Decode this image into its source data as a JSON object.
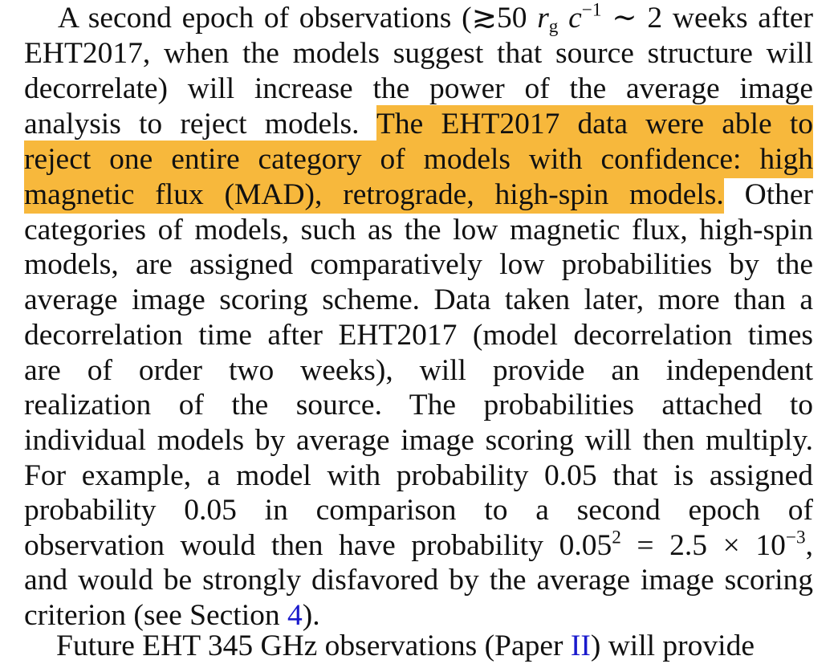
{
  "paragraph": {
    "l1a": "A second epoch of observations (",
    "l1sym": "≳",
    "l1num": "50 ",
    "l1r": "r",
    "l1sub": "g",
    "l1c": "c",
    "l1sup": "−1",
    "l1b": " ∼ 2 weeks after",
    "l2": "EHT2017, when the models suggest that source structure will",
    "l3": "decorrelate) will increase the power of the average image",
    "l4a": "analysis to reject models. ",
    "l4hl": "The EHT2017 data were able to",
    "l5hl": "reject one entire category of models with confidence: high",
    "l6hl": "magnetic flux (MAD), retrograde, high-spin models.",
    "l6b": " Other",
    "l7": "categories of models, such as the low magnetic flux, high-spin",
    "l8": "models, are assigned comparatively low probabilities by the",
    "l9": "average image scoring scheme. Data taken later, more than a",
    "l10": "decorrelation time after EHT2017 (model decorrelation times",
    "l11": "are of order two weeks), will provide an independent",
    "l12": "realization of the source. The probabilities attached to",
    "l13": "individual models by average image scoring will then multiply.",
    "l14": "For example, a model with probability 0.05 that is assigned",
    "l15": "probability 0.05 in comparison to a second epoch of",
    "l16a": "observation would then have probability 0.05",
    "l16sup1": "2",
    "l16b": " = 2.5 × 10",
    "l16sup2": "−3",
    "l16c": ",",
    "l17": "and would be strongly disfavored by the average image scoring",
    "l18a": "criterion (see Section ",
    "l18link": "4",
    "l18b": ")."
  },
  "next_paragraph_fragment": {
    "text_a": "Future EHT 345 GHz observations (Paper ",
    "link": "II",
    "text_b": ") will provide"
  },
  "colors": {
    "highlight": "#f7b83c",
    "link": "#1a1acc",
    "text": "#111111"
  }
}
